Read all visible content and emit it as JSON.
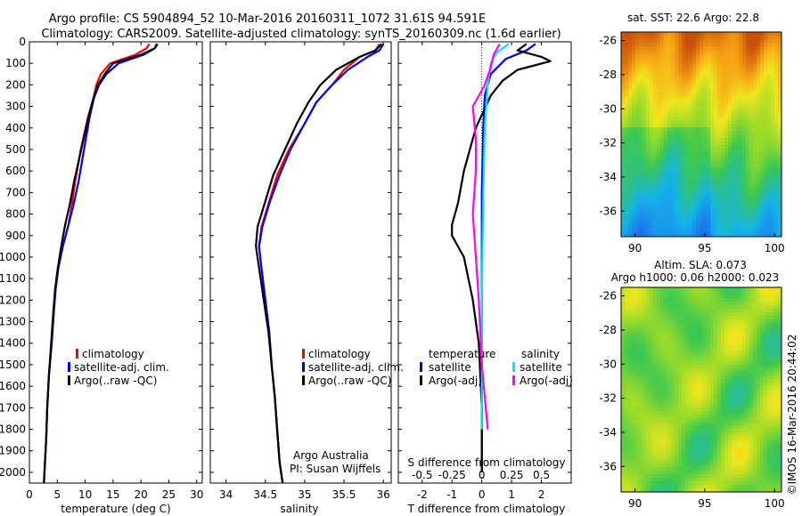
{
  "header": {
    "title_line1": "Argo profile: CS 5904894_52 10-Mar-2016 20160311_1072 31.61S 94.591E",
    "title_line2": "Climatology: CARS2009. Satellite-adjusted climatology: synTS_20160309.nc (1.6d earlier)"
  },
  "side": {
    "sst_caption": "sat. SST: 22.6 Argo: 22.8",
    "sla_caption1": "Altim. SLA: 0.073",
    "sla_caption2": "Argo h1000: 0.06 h2000: 0.023",
    "imos_stamp": "©IMOS 16-Mar-2016 20:44:02"
  },
  "chart_data": [
    {
      "type": "line",
      "id": "temperature",
      "xlabel": "temperature (deg C)",
      "xlim": [
        0,
        31
      ],
      "ylim": [
        2050,
        0
      ],
      "xticks": [
        0,
        5,
        10,
        15,
        20,
        25,
        30
      ],
      "yticks": [
        0,
        100,
        200,
        300,
        400,
        500,
        600,
        700,
        800,
        900,
        1000,
        1100,
        1200,
        1300,
        1400,
        1500,
        1600,
        1700,
        1800,
        1900,
        2000
      ],
      "legend": [
        "climatology",
        "satellite-adj. clim.",
        "Argo(..raw -QC)"
      ],
      "colors": {
        "climatology": "#ff0000",
        "satellite": "#0000ff",
        "argo": "#000000"
      },
      "series": [
        {
          "key": "climatology",
          "x": [
            21.5,
            21.0,
            19.0,
            14.5,
            12.8,
            12.0,
            11.5,
            10.5,
            9.2,
            8.2,
            7.6,
            7.0,
            6.0,
            5.2,
            4.7,
            4.4,
            4.0,
            3.5,
            3.2,
            3.0,
            2.8,
            2.7,
            2.6
          ],
          "y": [
            10,
            30,
            60,
            100,
            150,
            200,
            260,
            350,
            500,
            650,
            760,
            850,
            950,
            1050,
            1150,
            1250,
            1400,
            1550,
            1700,
            1850,
            1950,
            2000,
            2050
          ]
        },
        {
          "key": "satellite",
          "x": [
            23.0,
            22.5,
            20.5,
            16.0,
            13.8,
            12.5,
            11.6,
            10.8,
            9.8,
            8.8,
            7.9,
            7.0,
            6.0,
            5.2,
            4.7,
            4.4,
            4.0,
            3.5,
            3.2,
            3.0,
            2.8,
            2.7,
            2.6
          ],
          "y": [
            10,
            30,
            60,
            100,
            150,
            200,
            260,
            350,
            500,
            650,
            760,
            850,
            950,
            1050,
            1150,
            1250,
            1400,
            1550,
            1700,
            1850,
            1950,
            2000,
            2050
          ]
        },
        {
          "key": "argo",
          "x": [
            22.8,
            22.5,
            20.0,
            15.0,
            13.5,
            12.3,
            11.5,
            10.6,
            9.3,
            8.0,
            7.2,
            6.4,
            5.7,
            5.1,
            4.6,
            4.3,
            3.9,
            3.5,
            3.2,
            3.0,
            2.8,
            2.7,
            2.6
          ],
          "y": [
            10,
            30,
            60,
            100,
            150,
            200,
            260,
            350,
            500,
            650,
            760,
            850,
            950,
            1050,
            1150,
            1250,
            1400,
            1550,
            1700,
            1850,
            1950,
            2000,
            2050
          ]
        }
      ]
    },
    {
      "type": "line",
      "id": "salinity",
      "xlabel": "salinity",
      "xlim": [
        33.8,
        36.1
      ],
      "ylim": [
        2050,
        0
      ],
      "xticks": [
        34,
        34.5,
        35,
        35.5,
        36
      ],
      "xtick_labels": [
        "34",
        "34.5",
        "35",
        "35.5",
        "36"
      ],
      "legend": [
        "climatology",
        "satellite-adj. clim.",
        "Argo(..raw -QC)"
      ],
      "note1": "Argo Australia",
      "note2": "PI: Susan Wijffels",
      "series": [
        {
          "key": "climatology",
          "x": [
            35.95,
            35.9,
            35.7,
            35.5,
            35.35,
            35.15,
            35.0,
            34.8,
            34.65,
            34.55,
            34.45,
            34.42,
            34.45,
            34.5,
            34.55,
            34.58,
            34.62,
            34.65,
            34.68,
            34.7,
            34.72
          ],
          "y": [
            10,
            40,
            70,
            130,
            200,
            280,
            380,
            500,
            620,
            740,
            860,
            950,
            1050,
            1200,
            1350,
            1500,
            1650,
            1800,
            1950,
            2000,
            2050
          ]
        },
        {
          "key": "satellite",
          "x": [
            36.0,
            35.95,
            35.8,
            35.55,
            35.35,
            35.15,
            35.0,
            34.82,
            34.68,
            34.56,
            34.46,
            34.42,
            34.45,
            34.5,
            34.55,
            34.58,
            34.62,
            34.65,
            34.68,
            34.7,
            34.72
          ],
          "y": [
            10,
            40,
            70,
            130,
            200,
            280,
            380,
            500,
            620,
            740,
            860,
            950,
            1050,
            1200,
            1350,
            1500,
            1650,
            1800,
            1950,
            2000,
            2050
          ]
        },
        {
          "key": "argo",
          "x": [
            35.98,
            35.9,
            35.7,
            35.4,
            35.2,
            35.05,
            34.9,
            34.75,
            34.6,
            34.5,
            34.4,
            34.38,
            34.42,
            34.48,
            34.54,
            34.58,
            34.62,
            34.65,
            34.68,
            34.7,
            34.72
          ],
          "y": [
            10,
            40,
            70,
            130,
            200,
            280,
            380,
            500,
            620,
            740,
            860,
            950,
            1050,
            1200,
            1350,
            1500,
            1650,
            1800,
            1950,
            2000,
            2050
          ]
        }
      ]
    },
    {
      "type": "line",
      "id": "difference",
      "xlabel": "T difference from climatology",
      "xlabel2": "S difference from climatology",
      "xlim": [
        -2.8,
        3.0
      ],
      "ylim": [
        2050,
        0
      ],
      "xticks": [
        -2,
        -1,
        0,
        1,
        2
      ],
      "xticks2_labels": [
        "-0.5",
        "-0.25",
        "0",
        "0.25",
        "0.5"
      ],
      "xticks2_pos": [
        -2,
        -1,
        0,
        1,
        2
      ],
      "legend_temp_title": "temperature",
      "legend_sal_title": "salinity",
      "legend": [
        "satellite",
        "Argo(-adj)",
        "satellite",
        "Argo(-adj)"
      ],
      "colors": {
        "t_sat": "#0000ff",
        "t_argo": "#000000",
        "s_sat": "#00e5ee",
        "s_argo": "#ff00ff"
      },
      "series": [
        {
          "key": "t_sat",
          "x": [
            1.8,
            1.5,
            0.8,
            0.3,
            0.1,
            0.05,
            0.0,
            0.0,
            0.0,
            0.0
          ],
          "y": [
            10,
            40,
            80,
            150,
            250,
            400,
            700,
            1100,
            1600,
            2000
          ]
        },
        {
          "key": "t_argo",
          "x": [
            1.5,
            1.2,
            2.0,
            2.3,
            1.2,
            0.7,
            0.3,
            -0.2,
            -0.6,
            -0.8,
            -1.0,
            -1.0,
            -0.6,
            -0.3,
            -0.1,
            0.0,
            0.0
          ],
          "y": [
            10,
            40,
            70,
            90,
            130,
            180,
            250,
            400,
            600,
            750,
            850,
            900,
            1000,
            1200,
            1400,
            1700,
            2000
          ]
        },
        {
          "key": "s_sat",
          "x": [
            0.9,
            0.5,
            0.3,
            0.2,
            0.1,
            0.05,
            0.0,
            0.0
          ],
          "y": [
            10,
            50,
            100,
            200,
            400,
            700,
            1200,
            1800
          ]
        },
        {
          "key": "s_argo",
          "x": [
            0.6,
            0.4,
            0.3,
            0.1,
            -0.3,
            -0.2,
            -0.2,
            -0.3,
            -0.2,
            -0.1,
            0.0,
            0.2
          ],
          "y": [
            10,
            60,
            120,
            200,
            300,
            450,
            600,
            800,
            1000,
            1200,
            1500,
            1800
          ]
        }
      ]
    },
    {
      "type": "heatmap",
      "id": "sst_map",
      "xlim": [
        89,
        100.5
      ],
      "ylim": [
        -37.5,
        -25.5
      ],
      "xticks": [
        90,
        95,
        100
      ],
      "yticks": [
        -26,
        -28,
        -30,
        -32,
        -34,
        -36
      ]
    },
    {
      "type": "heatmap",
      "id": "sla_map",
      "xlim": [
        89,
        100.5
      ],
      "ylim": [
        -37.5,
        -25.5
      ],
      "xticks": [
        90,
        95,
        100
      ],
      "yticks": [
        -26,
        -28,
        -30,
        -32,
        -34,
        -36
      ]
    }
  ]
}
